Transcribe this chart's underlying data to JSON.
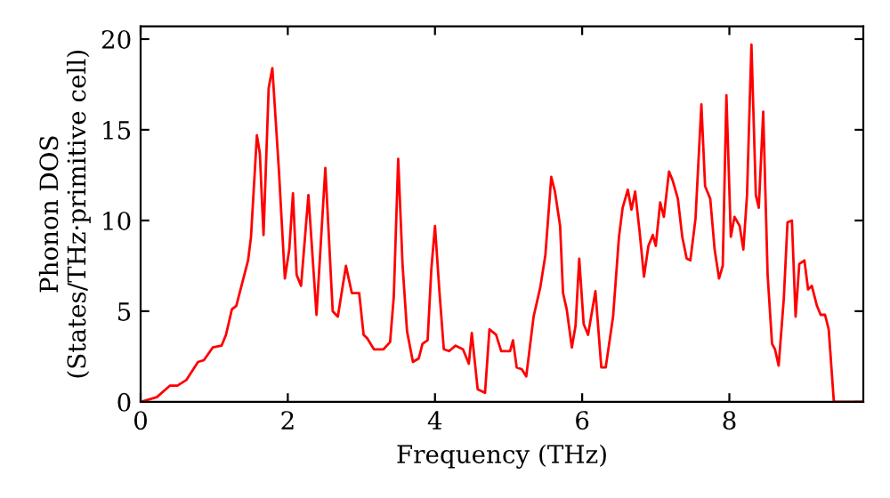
{
  "chart_data": {
    "type": "line",
    "xlabel": "Frequency (THz)",
    "ylabel": "Phonon DOS\n(States/THz·primitive cell)",
    "xlim": [
      0,
      9.82
    ],
    "ylim": [
      0,
      20.7
    ],
    "xticks": [
      0,
      2,
      4,
      6,
      8
    ],
    "yticks": [
      0,
      5,
      10,
      15,
      20
    ],
    "grid": false,
    "legend": false,
    "marker": "none",
    "line_style": "solid",
    "series": [
      {
        "color": "#ff0000",
        "x": [
          0,
          0.22,
          0.4,
          0.5,
          0.62,
          0.78,
          0.86,
          0.98,
          1.1,
          1.16,
          1.24,
          1.3,
          1.46,
          1.5,
          1.58,
          1.62,
          1.67,
          1.74,
          1.79,
          1.88,
          1.96,
          2.02,
          2.07,
          2.12,
          2.18,
          2.28,
          2.39,
          2.51,
          2.61,
          2.68,
          2.79,
          2.87,
          2.97,
          3.03,
          3.08,
          3.17,
          3.22,
          3.3,
          3.39,
          3.44,
          3.5,
          3.56,
          3.62,
          3.7,
          3.78,
          3.83,
          3.9,
          3.95,
          4.0,
          4.06,
          4.12,
          4.19,
          4.28,
          4.38,
          4.46,
          4.5,
          4.58,
          4.68,
          4.74,
          4.83,
          4.9,
          5.02,
          5.06,
          5.11,
          5.18,
          5.24,
          5.34,
          5.43,
          5.5,
          5.58,
          5.63,
          5.7,
          5.74,
          5.79,
          5.86,
          5.91,
          5.96,
          6.02,
          6.08,
          6.18,
          6.26,
          6.32,
          6.42,
          6.5,
          6.55,
          6.62,
          6.67,
          6.72,
          6.78,
          6.84,
          6.9,
          6.96,
          7.0,
          7.06,
          7.11,
          7.18,
          7.23,
          7.3,
          7.36,
          7.42,
          7.47,
          7.54,
          7.62,
          7.67,
          7.74,
          7.8,
          7.86,
          7.91,
          7.96,
          8.02,
          8.07,
          8.14,
          8.19,
          8.24,
          8.3,
          8.36,
          8.4,
          8.46,
          8.52,
          8.58,
          8.62,
          8.67,
          8.74,
          8.79,
          8.85,
          8.9,
          8.95,
          9.02,
          9.07,
          9.12,
          9.19,
          9.24,
          9.3,
          9.35,
          9.42,
          9.82
        ],
        "values": [
          0,
          0.26,
          0.9,
          0.9,
          1.2,
          2.2,
          2.3,
          3.0,
          3.1,
          3.7,
          5.1,
          5.3,
          7.8,
          9.1,
          14.7,
          13.7,
          9.2,
          17.3,
          18.4,
          12.7,
          6.8,
          8.4,
          11.5,
          7.0,
          6.4,
          11.4,
          4.8,
          12.9,
          5.0,
          4.7,
          7.5,
          6.0,
          6.0,
          3.7,
          3.5,
          2.9,
          2.9,
          2.9,
          3.3,
          5.8,
          13.4,
          7.5,
          3.9,
          2.2,
          2.4,
          3.2,
          3.4,
          7.3,
          9.7,
          6.1,
          2.9,
          2.8,
          3.1,
          2.9,
          2.1,
          3.8,
          0.7,
          0.5,
          4.0,
          3.7,
          2.8,
          2.8,
          3.4,
          1.9,
          1.8,
          1.4,
          4.7,
          6.3,
          8.1,
          12.4,
          11.6,
          9.7,
          6.0,
          5.1,
          3.0,
          4.2,
          7.9,
          4.3,
          3.7,
          6.1,
          1.9,
          1.9,
          4.7,
          9.1,
          10.7,
          11.7,
          10.6,
          11.6,
          9.4,
          6.9,
          8.6,
          9.2,
          8.6,
          11.0,
          10.2,
          12.7,
          12.2,
          11.2,
          9.1,
          7.9,
          7.8,
          10.1,
          16.4,
          11.9,
          11.2,
          8.4,
          6.8,
          7.5,
          16.9,
          9.1,
          10.2,
          9.7,
          8.4,
          11.4,
          19.7,
          11.4,
          10.7,
          16.0,
          7.0,
          3.2,
          2.9,
          2.0,
          5.7,
          9.9,
          10.0,
          4.7,
          7.6,
          7.8,
          6.2,
          6.4,
          5.3,
          4.8,
          4.8,
          4.0,
          0,
          0
        ]
      }
    ]
  }
}
